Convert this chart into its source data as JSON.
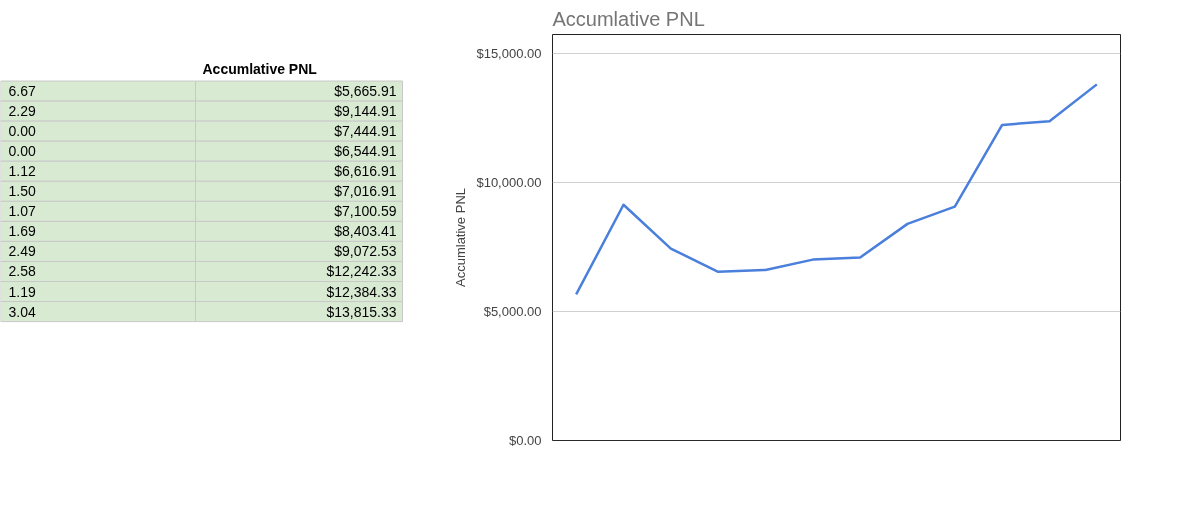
{
  "chart_data": [
    {
      "type": "other",
      "title": "Accumlative PNL",
      "annotations": [
        "6.67",
        "$5,665.91",
        "2.29",
        "$9,144.91",
        "0.00",
        "$7,444.91",
        "0.00",
        "$6,544.91",
        "1.12",
        "$6,616.91",
        "1.50",
        "$7,016.91",
        "1.07",
        "$7,100.59",
        "1.69",
        "$8,403.41",
        "2.49",
        "$9,072.53",
        "2.58",
        "$12,242.33",
        "1.19",
        "$12,384.33",
        "3.04",
        "$13,815.33"
      ]
    },
    {
      "type": "line",
      "title": "Accumlative PNL",
      "ylabel": "Accumlative PNL",
      "categories": [
        null,
        null,
        null,
        null,
        null,
        null,
        null,
        null,
        null,
        null,
        null,
        null
      ],
      "series": [
        {
          "color": "#4a7fdc",
          "values": [
            5665.91,
            9144.91,
            7444.91,
            6544.91,
            6616.91,
            7016.91,
            7100.59,
            8403.41,
            9072.53,
            12242.33,
            12384.33,
            13815.33
          ]
        }
      ],
      "ylim": [
        0,
        15750
      ],
      "yticks": [
        {
          "value": 0,
          "label": "$0.00"
        },
        {
          "value": 5000,
          "label": "$5,000.00"
        },
        {
          "value": 10000,
          "label": "$10,000.00"
        },
        {
          "value": 15000,
          "label": "$15,000.00"
        }
      ],
      "grid": "y",
      "tick_labels": "y"
    }
  ]
}
